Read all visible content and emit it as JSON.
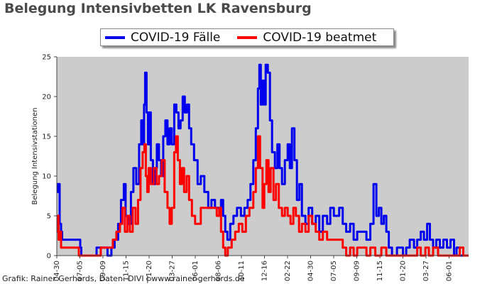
{
  "title": "Belegung Intensivbetten LK Ravensburg",
  "credit": "Grafik: Rainer Gerhards, Daten: DIVI | www.rainer-gerhards.de",
  "colors": {
    "faelle": "#0000ee",
    "beatmet": "#ff0000",
    "plot_bg": "#cccccc"
  },
  "legend": {
    "faelle": "COVID-19 Fälle",
    "beatmet": "COVID-19 beatmet"
  },
  "chart_data": {
    "type": "line",
    "title": "Belegung Intensivbetten LK Ravensburg",
    "xlabel": "",
    "ylabel": "Belegung Intensivstationen",
    "ylim": [
      0,
      25
    ],
    "yticks": [
      0,
      5,
      10,
      15,
      20,
      25
    ],
    "xlim": [
      "2020-04-30",
      "2023-07-05"
    ],
    "xticks": [
      "04-30",
      "07-05",
      "09-09",
      "11-15",
      "01-20",
      "03-27",
      "06-01",
      "08-06",
      "10-11",
      "12-16",
      "02-22",
      "04-30",
      "07-05",
      "09-09",
      "11-15",
      "01-20",
      "03-27",
      "06-01"
    ],
    "grid": false,
    "legend_position": "top-center",
    "series": [
      {
        "name": "COVID-19 Fälle",
        "color": "#0000ee",
        "points": [
          [
            "2020-04-30",
            9
          ],
          [
            "2020-05-02",
            8
          ],
          [
            "2020-05-05",
            9
          ],
          [
            "2020-05-08",
            4
          ],
          [
            "2020-05-12",
            3
          ],
          [
            "2020-05-15",
            2
          ],
          [
            "2020-05-25",
            2
          ],
          [
            "2020-06-10",
            2
          ],
          [
            "2020-06-28",
            2
          ],
          [
            "2020-07-05",
            1
          ],
          [
            "2020-07-08",
            0
          ],
          [
            "2020-08-01",
            0
          ],
          [
            "2020-08-20",
            1
          ],
          [
            "2020-09-09",
            1
          ],
          [
            "2020-09-20",
            0
          ],
          [
            "2020-10-01",
            1
          ],
          [
            "2020-10-10",
            2
          ],
          [
            "2020-10-20",
            4
          ],
          [
            "2020-10-28",
            7
          ],
          [
            "2020-11-05",
            9
          ],
          [
            "2020-11-10",
            5
          ],
          [
            "2020-11-18",
            4
          ],
          [
            "2020-11-25",
            8
          ],
          [
            "2020-12-02",
            11
          ],
          [
            "2020-12-10",
            9
          ],
          [
            "2020-12-18",
            14
          ],
          [
            "2020-12-24",
            17
          ],
          [
            "2020-12-28",
            14
          ],
          [
            "2021-01-01",
            19
          ],
          [
            "2021-01-04",
            23
          ],
          [
            "2021-01-08",
            18
          ],
          [
            "2021-01-12",
            14
          ],
          [
            "2021-01-16",
            18
          ],
          [
            "2021-01-20",
            12
          ],
          [
            "2021-01-26",
            9
          ],
          [
            "2021-02-01",
            11
          ],
          [
            "2021-02-06",
            14
          ],
          [
            "2021-02-12",
            12
          ],
          [
            "2021-02-18",
            10
          ],
          [
            "2021-02-24",
            15
          ],
          [
            "2021-03-02",
            17
          ],
          [
            "2021-03-08",
            14
          ],
          [
            "2021-03-14",
            16
          ],
          [
            "2021-03-20",
            14
          ],
          [
            "2021-03-27",
            19
          ],
          [
            "2021-04-02",
            18
          ],
          [
            "2021-04-08",
            16
          ],
          [
            "2021-04-14",
            17
          ],
          [
            "2021-04-20",
            20
          ],
          [
            "2021-04-26",
            18
          ],
          [
            "2021-05-02",
            19
          ],
          [
            "2021-05-08",
            16
          ],
          [
            "2021-05-14",
            14
          ],
          [
            "2021-05-22",
            12
          ],
          [
            "2021-06-01",
            9
          ],
          [
            "2021-06-10",
            10
          ],
          [
            "2021-06-20",
            8
          ],
          [
            "2021-07-01",
            6
          ],
          [
            "2021-07-10",
            7
          ],
          [
            "2021-07-20",
            6
          ],
          [
            "2021-08-01",
            6
          ],
          [
            "2021-08-06",
            7
          ],
          [
            "2021-08-12",
            5
          ],
          [
            "2021-08-18",
            3
          ],
          [
            "2021-08-24",
            2
          ],
          [
            "2021-09-01",
            4
          ],
          [
            "2021-09-10",
            5
          ],
          [
            "2021-09-20",
            6
          ],
          [
            "2021-10-01",
            5
          ],
          [
            "2021-10-11",
            6
          ],
          [
            "2021-10-20",
            7
          ],
          [
            "2021-10-28",
            9
          ],
          [
            "2021-11-05",
            12
          ],
          [
            "2021-11-12",
            16
          ],
          [
            "2021-11-18",
            21
          ],
          [
            "2021-11-22",
            24
          ],
          [
            "2021-11-26",
            19
          ],
          [
            "2021-12-01",
            22
          ],
          [
            "2021-12-06",
            19
          ],
          [
            "2021-12-10",
            24
          ],
          [
            "2021-12-16",
            23
          ],
          [
            "2021-12-22",
            17
          ],
          [
            "2021-12-28",
            13
          ],
          [
            "2022-01-05",
            11
          ],
          [
            "2022-01-12",
            14
          ],
          [
            "2022-01-18",
            11
          ],
          [
            "2022-01-25",
            9
          ],
          [
            "2022-02-02",
            12
          ],
          [
            "2022-02-10",
            14
          ],
          [
            "2022-02-16",
            11
          ],
          [
            "2022-02-22",
            16
          ],
          [
            "2022-03-01",
            12
          ],
          [
            "2022-03-08",
            7
          ],
          [
            "2022-03-15",
            9
          ],
          [
            "2022-03-22",
            5
          ],
          [
            "2022-04-01",
            4
          ],
          [
            "2022-04-10",
            6
          ],
          [
            "2022-04-20",
            4
          ],
          [
            "2022-04-30",
            5
          ],
          [
            "2022-05-10",
            3
          ],
          [
            "2022-05-20",
            5
          ],
          [
            "2022-06-01",
            4
          ],
          [
            "2022-06-10",
            6
          ],
          [
            "2022-06-20",
            5
          ],
          [
            "2022-07-05",
            6
          ],
          [
            "2022-07-15",
            4
          ],
          [
            "2022-07-25",
            3
          ],
          [
            "2022-08-05",
            4
          ],
          [
            "2022-08-15",
            2
          ],
          [
            "2022-08-25",
            3
          ],
          [
            "2022-09-09",
            3
          ],
          [
            "2022-09-20",
            2
          ],
          [
            "2022-10-01",
            4
          ],
          [
            "2022-10-10",
            9
          ],
          [
            "2022-10-18",
            5
          ],
          [
            "2022-10-25",
            6
          ],
          [
            "2022-11-01",
            4
          ],
          [
            "2022-11-08",
            5
          ],
          [
            "2022-11-15",
            3
          ],
          [
            "2022-11-22",
            1
          ],
          [
            "2022-12-01",
            0
          ],
          [
            "2022-12-15",
            1
          ],
          [
            "2023-01-01",
            0
          ],
          [
            "2023-01-10",
            1
          ],
          [
            "2023-01-20",
            2
          ],
          [
            "2023-02-01",
            1
          ],
          [
            "2023-02-10",
            2
          ],
          [
            "2023-02-20",
            3
          ],
          [
            "2023-03-01",
            2
          ],
          [
            "2023-03-10",
            4
          ],
          [
            "2023-03-18",
            2
          ],
          [
            "2023-03-27",
            1
          ],
          [
            "2023-04-05",
            2
          ],
          [
            "2023-04-15",
            1
          ],
          [
            "2023-04-25",
            2
          ],
          [
            "2023-05-05",
            1
          ],
          [
            "2023-05-15",
            2
          ],
          [
            "2023-05-25",
            0
          ],
          [
            "2023-06-01",
            1
          ],
          [
            "2023-06-10",
            0
          ],
          [
            "2023-06-20",
            0
          ],
          [
            "2023-07-05",
            0
          ]
        ]
      },
      {
        "name": "COVID-19 beatmet",
        "color": "#ff0000",
        "points": [
          [
            "2020-04-30",
            3
          ],
          [
            "2020-05-02",
            5
          ],
          [
            "2020-05-05",
            2
          ],
          [
            "2020-05-08",
            3
          ],
          [
            "2020-05-12",
            1
          ],
          [
            "2020-05-18",
            1
          ],
          [
            "2020-06-01",
            1
          ],
          [
            "2020-06-20",
            1
          ],
          [
            "2020-07-01",
            0
          ],
          [
            "2020-08-15",
            0
          ],
          [
            "2020-09-01",
            1
          ],
          [
            "2020-09-20",
            1
          ],
          [
            "2020-10-05",
            2
          ],
          [
            "2020-10-15",
            3
          ],
          [
            "2020-10-25",
            4
          ],
          [
            "2020-11-01",
            6
          ],
          [
            "2020-11-08",
            3
          ],
          [
            "2020-11-15",
            5
          ],
          [
            "2020-11-22",
            3
          ],
          [
            "2020-11-30",
            6
          ],
          [
            "2020-12-08",
            4
          ],
          [
            "2020-12-15",
            7
          ],
          [
            "2020-12-22",
            11
          ],
          [
            "2020-12-28",
            13
          ],
          [
            "2021-01-02",
            14
          ],
          [
            "2021-01-06",
            10
          ],
          [
            "2021-01-10",
            8
          ],
          [
            "2021-01-14",
            11
          ],
          [
            "2021-01-20",
            9
          ],
          [
            "2021-01-28",
            11
          ],
          [
            "2021-02-05",
            9
          ],
          [
            "2021-02-12",
            10
          ],
          [
            "2021-02-20",
            12
          ],
          [
            "2021-02-28",
            8
          ],
          [
            "2021-03-08",
            6
          ],
          [
            "2021-03-14",
            4
          ],
          [
            "2021-03-20",
            6
          ],
          [
            "2021-03-27",
            13
          ],
          [
            "2021-04-01",
            15
          ],
          [
            "2021-04-06",
            12
          ],
          [
            "2021-04-12",
            9
          ],
          [
            "2021-04-18",
            11
          ],
          [
            "2021-04-24",
            8
          ],
          [
            "2021-05-01",
            10
          ],
          [
            "2021-05-08",
            7
          ],
          [
            "2021-05-16",
            5
          ],
          [
            "2021-05-25",
            4
          ],
          [
            "2021-06-01",
            4
          ],
          [
            "2021-06-10",
            6
          ],
          [
            "2021-06-25",
            6
          ],
          [
            "2021-07-10",
            6
          ],
          [
            "2021-07-25",
            5
          ],
          [
            "2021-08-01",
            6
          ],
          [
            "2021-08-06",
            3
          ],
          [
            "2021-08-12",
            1
          ],
          [
            "2021-08-18",
            0
          ],
          [
            "2021-08-25",
            1
          ],
          [
            "2021-09-05",
            2
          ],
          [
            "2021-09-15",
            3
          ],
          [
            "2021-09-25",
            4
          ],
          [
            "2021-10-05",
            3
          ],
          [
            "2021-10-15",
            5
          ],
          [
            "2021-10-25",
            6
          ],
          [
            "2021-11-05",
            8
          ],
          [
            "2021-11-12",
            11
          ],
          [
            "2021-11-18",
            15
          ],
          [
            "2021-11-24",
            11
          ],
          [
            "2021-12-01",
            6
          ],
          [
            "2021-12-06",
            9
          ],
          [
            "2021-12-12",
            12
          ],
          [
            "2021-12-18",
            8
          ],
          [
            "2021-12-24",
            11
          ],
          [
            "2022-01-01",
            7
          ],
          [
            "2022-01-08",
            9
          ],
          [
            "2022-01-16",
            6
          ],
          [
            "2022-01-25",
            5
          ],
          [
            "2022-02-02",
            6
          ],
          [
            "2022-02-10",
            5
          ],
          [
            "2022-02-18",
            4
          ],
          [
            "2022-02-26",
            6
          ],
          [
            "2022-03-05",
            5
          ],
          [
            "2022-03-14",
            3
          ],
          [
            "2022-03-22",
            4
          ],
          [
            "2022-04-01",
            3
          ],
          [
            "2022-04-10",
            5
          ],
          [
            "2022-04-20",
            4
          ],
          [
            "2022-04-30",
            3
          ],
          [
            "2022-05-10",
            2
          ],
          [
            "2022-05-20",
            3
          ],
          [
            "2022-06-01",
            2
          ],
          [
            "2022-06-15",
            2
          ],
          [
            "2022-07-05",
            2
          ],
          [
            "2022-07-15",
            1
          ],
          [
            "2022-07-25",
            0
          ],
          [
            "2022-08-05",
            1
          ],
          [
            "2022-08-15",
            0
          ],
          [
            "2022-08-25",
            1
          ],
          [
            "2022-09-09",
            1
          ],
          [
            "2022-09-20",
            0
          ],
          [
            "2022-10-01",
            1
          ],
          [
            "2022-10-15",
            0
          ],
          [
            "2022-11-01",
            1
          ],
          [
            "2022-11-15",
            0
          ],
          [
            "2022-12-01",
            0
          ],
          [
            "2023-01-20",
            0
          ],
          [
            "2023-02-10",
            1
          ],
          [
            "2023-02-20",
            0
          ],
          [
            "2023-03-05",
            1
          ],
          [
            "2023-03-15",
            0
          ],
          [
            "2023-03-27",
            1
          ],
          [
            "2023-04-10",
            0
          ],
          [
            "2023-05-01",
            0
          ],
          [
            "2023-06-01",
            0
          ],
          [
            "2023-06-10",
            1
          ],
          [
            "2023-06-20",
            0
          ],
          [
            "2023-07-05",
            0
          ]
        ]
      }
    ]
  }
}
